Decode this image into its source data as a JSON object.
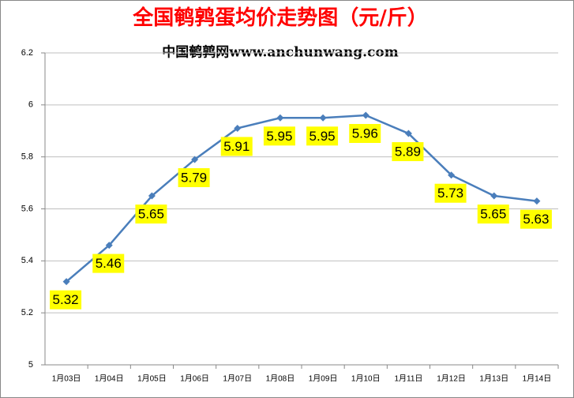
{
  "chart_data": {
    "type": "line",
    "title": "全国鹌鹑蛋均价走势图（元/斤）",
    "subtitle": "中国鹌鹑网www.anchunwang.com",
    "categories": [
      "1月03日",
      "1月04日",
      "1月05日",
      "1月06日",
      "1月07日",
      "1月08日",
      "1月09日",
      "1月10日",
      "1月11日",
      "1月12日",
      "1月13日",
      "1月14日"
    ],
    "values": [
      5.32,
      5.46,
      5.65,
      5.79,
      5.91,
      5.95,
      5.95,
      5.96,
      5.89,
      5.73,
      5.65,
      5.63
    ],
    "color": "#4a7ebb",
    "label_color": "#ffff00",
    "ylim": [
      5,
      6.2
    ],
    "yticks": [
      5,
      5.2,
      5.4,
      5.6,
      5.8,
      6,
      6.2
    ],
    "grid": true
  }
}
